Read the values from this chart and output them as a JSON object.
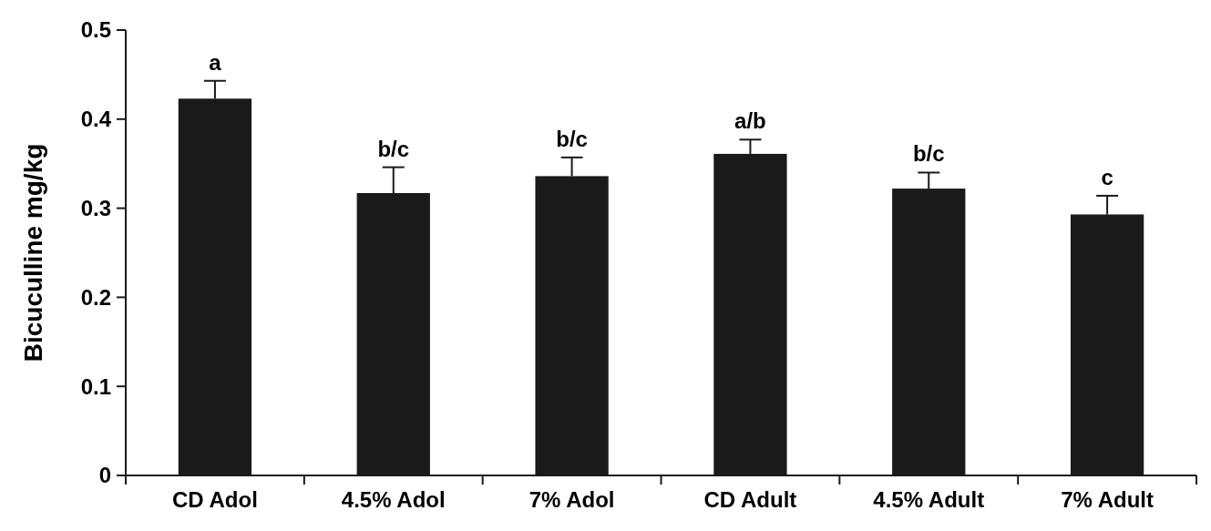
{
  "chart_data": {
    "type": "bar",
    "ylabel": "Bicuculline mg/kg",
    "categories": [
      "CD Adol",
      "4.5% Adol",
      "7% Adol",
      "CD Adult",
      "4.5% Adult",
      "7% Adult"
    ],
    "values": [
      0.423,
      0.317,
      0.336,
      0.361,
      0.322,
      0.293
    ],
    "errors": [
      [
        0.423,
        0.443
      ],
      [
        0.317,
        0.346
      ],
      [
        0.336,
        0.357
      ],
      [
        0.361,
        0.377
      ],
      [
        0.322,
        0.34
      ],
      [
        0.293,
        0.314
      ]
    ],
    "color": "#1a1a1a",
    "ylim": [
      0,
      0.5
    ],
    "yticks": [
      0,
      0.1,
      0.2,
      0.3,
      0.4,
      0.5
    ],
    "grid": false,
    "annotations": [
      {
        "text": "a",
        "x": "CD Adol",
        "y": 0.443
      },
      {
        "text": "b/c",
        "x": "4.5% Adol",
        "y": 0.346
      },
      {
        "text": "b/c",
        "x": "7% Adol",
        "y": 0.357
      },
      {
        "text": "a/b",
        "x": "CD Adult",
        "y": 0.377
      },
      {
        "text": "b/c",
        "x": "4.5% Adult",
        "y": 0.34
      },
      {
        "text": "c",
        "x": "7% Adult",
        "y": 0.314
      }
    ]
  }
}
